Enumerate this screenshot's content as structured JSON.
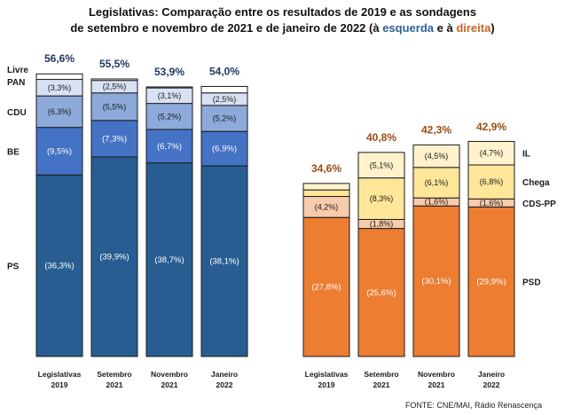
{
  "title": {
    "line1": "Legislativas: Comparação entre os resultados de 2019 e as sondagens",
    "line2_prefix": "de setembro e novembro de 2021 e de janeiro de 2022 (à ",
    "left_word": "esquerda",
    "middle": " e à ",
    "right_word": "direita",
    "suffix": ")"
  },
  "source": "FONTE: CNE/MAI, Rádio Renascença",
  "colors": {
    "left_total": "#1f3864",
    "right_total": "#9c4c12",
    "left_word": "#2e5f9a",
    "right_word": "#c5651f",
    "PS": "#285d91",
    "BE": "#4472c4",
    "CDU": "#8eaadb",
    "PAN": "#d9e2f3",
    "Livre": "#ffffff",
    "PSD": "#ed7d31",
    "CDS-PP": "#f8cbad",
    "Chega": "#ffe699",
    "IL": "#fff2cc"
  },
  "chart_data": [
    {
      "type": "bar",
      "stacked": true,
      "side": "esquerda",
      "categories": [
        "Legislativas 2019",
        "Setembro 2021",
        "Novembro 2021",
        "Janeiro 2022"
      ],
      "category_lines": [
        [
          "Legislativas",
          "2019"
        ],
        [
          "Setembro",
          "2021"
        ],
        [
          "Novembro",
          "2021"
        ],
        [
          "Janeiro",
          "2022"
        ]
      ],
      "series": [
        {
          "name": "PS",
          "values": [
            36.3,
            39.9,
            38.7,
            38.1
          ],
          "labels": [
            "(36,3%)",
            "(39,9%)",
            "(38,7%)",
            "(38,1%)"
          ]
        },
        {
          "name": "BE",
          "values": [
            9.5,
            7.3,
            6.7,
            6.9
          ],
          "labels": [
            "(9,5%)",
            "(7,3%)",
            "(6,7%)",
            "(6,9%)"
          ]
        },
        {
          "name": "CDU",
          "values": [
            6.3,
            5.5,
            5.2,
            5.2
          ],
          "labels": [
            "(6,3%)",
            "(5,5%)",
            "(5,2%)",
            "(5,2%)"
          ]
        },
        {
          "name": "PAN",
          "values": [
            3.3,
            2.5,
            3.1,
            2.5
          ],
          "labels": [
            "(3,3%)",
            "(2,5%)",
            "(3,1%)",
            "(2,5%)"
          ]
        },
        {
          "name": "Livre",
          "values": [
            1.1,
            0.3,
            0.2,
            1.3
          ],
          "labels": [
            "",
            "",
            "",
            ""
          ]
        }
      ],
      "totals": [
        "56,6%",
        "55,5%",
        "53,9%",
        "54,0%"
      ],
      "total_values": [
        56.6,
        55.5,
        53.9,
        54.0
      ],
      "party_labels": [
        "Livre",
        "PAN",
        "CDU",
        "BE",
        "PS"
      ],
      "ylim": [
        0,
        60
      ],
      "grid": false
    },
    {
      "type": "bar",
      "stacked": true,
      "side": "direita",
      "categories": [
        "Legislativas 2019",
        "Setembro 2021",
        "Novembro 2021",
        "Janeiro 2022"
      ],
      "category_lines": [
        [
          "Legislativas",
          "2019"
        ],
        [
          "Setembro",
          "2021"
        ],
        [
          "Novembro",
          "2021"
        ],
        [
          "Janeiro",
          "2022"
        ]
      ],
      "series": [
        {
          "name": "PSD",
          "values": [
            27.8,
            25.6,
            30.1,
            29.9
          ],
          "labels": [
            "(27,8%)",
            "(25,6%)",
            "(30,1%)",
            "(29,9%)"
          ]
        },
        {
          "name": "CDS-PP",
          "values": [
            4.2,
            1.8,
            1.6,
            1.6
          ],
          "labels": [
            "(4,2%)",
            "(1,8%)",
            "(1,6%)",
            "(1,6%)"
          ]
        },
        {
          "name": "Chega",
          "values": [
            1.3,
            8.3,
            6.1,
            6.8
          ],
          "labels": [
            "",
            "(8,3%)",
            "(6,1%)",
            "(6,8%)"
          ]
        },
        {
          "name": "IL",
          "values": [
            1.3,
            5.1,
            4.5,
            4.7
          ],
          "labels": [
            "",
            "(5,1%)",
            "(4,5%)",
            "(4,7%)"
          ]
        }
      ],
      "totals": [
        "34,6%",
        "40,8%",
        "42,3%",
        "42,9%"
      ],
      "total_values": [
        34.6,
        40.8,
        42.3,
        42.9
      ],
      "party_labels": [
        "IL",
        "Chega",
        "CDS-PP",
        "PSD"
      ],
      "ylim": [
        0,
        60
      ],
      "grid": false
    }
  ]
}
